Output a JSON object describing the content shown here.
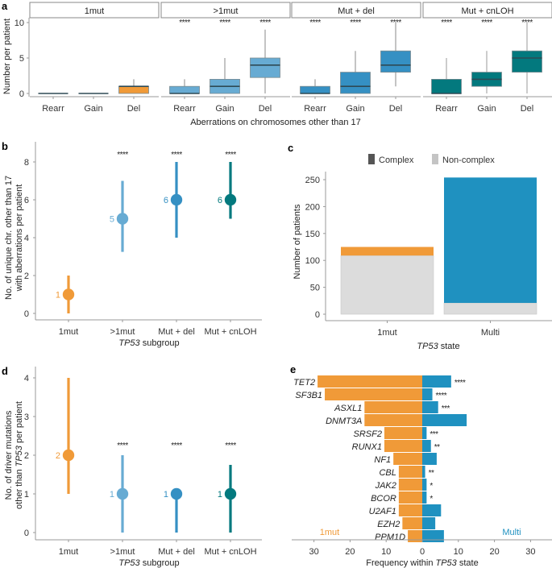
{
  "colors": {
    "1mut": "#F09A38",
    ">1mut": "#67ABD3",
    "Mut + del": "#3590C3",
    "Mut + cnLOH": "#03797E",
    "multi": "#1F91C0",
    "complex": "#555555",
    "noncomplex": "#DCDCDC",
    "median_line": "#2E4A55",
    "whisker": "#8A8A8A"
  },
  "chart_data": [
    {
      "panel": "a",
      "type": "box",
      "ylabel": "Number per patient",
      "xlabel": "Aberrations on chromosomes other than 17",
      "ylim": [
        0,
        10.5
      ],
      "yticks": [
        0,
        5,
        10
      ],
      "facets": [
        {
          "name": "1mut",
          "color_key": "1mut",
          "groups": [
            {
              "label": "Rearr",
              "min": 0,
              "q1": 0,
              "median": 0,
              "q3": 0,
              "max": 0,
              "sig": ""
            },
            {
              "label": "Gain",
              "min": 0,
              "q1": 0,
              "median": 0,
              "q3": 0,
              "max": 0,
              "sig": ""
            },
            {
              "label": "Del",
              "min": 0,
              "q1": 0,
              "median": 1,
              "q3": 1,
              "max": 2,
              "sig": ""
            }
          ]
        },
        {
          "name": ">1mut",
          "color_key": ">1mut",
          "groups": [
            {
              "label": "Rearr",
              "min": 0,
              "q1": 0,
              "median": 0,
              "q3": 1,
              "max": 2,
              "sig": "****"
            },
            {
              "label": "Gain",
              "min": 0,
              "q1": 0,
              "median": 1,
              "q3": 2,
              "max": 5,
              "sig": "****"
            },
            {
              "label": "Del",
              "min": 0,
              "q1": 2.25,
              "median": 4,
              "q3": 5,
              "max": 9,
              "sig": "****"
            }
          ]
        },
        {
          "name": "Mut + del",
          "color_key": "Mut + del",
          "groups": [
            {
              "label": "Rearr",
              "min": 0,
              "q1": 0,
              "median": 0,
              "q3": 1,
              "max": 2,
              "sig": "****"
            },
            {
              "label": "Gain",
              "min": 0,
              "q1": 0,
              "median": 1,
              "q3": 3,
              "max": 6,
              "sig": "****"
            },
            {
              "label": "Del",
              "min": 1,
              "q1": 3,
              "median": 4,
              "q3": 6,
              "max": 10,
              "sig": "****"
            }
          ]
        },
        {
          "name": "Mut + cnLOH",
          "color_key": "Mut + cnLOH",
          "groups": [
            {
              "label": "Rearr",
              "min": 0,
              "q1": 0,
              "median": 0,
              "q3": 2,
              "max": 5,
              "sig": "****"
            },
            {
              "label": "Gain",
              "min": 0,
              "q1": 1,
              "median": 2,
              "q3": 3,
              "max": 6,
              "sig": "****"
            },
            {
              "label": "Del",
              "min": 0,
              "q1": 3,
              "median": 5,
              "q3": 6,
              "max": 10,
              "sig": "****"
            }
          ]
        }
      ]
    },
    {
      "panel": "b",
      "type": "pointrange",
      "ylabel_lines": [
        "No. of unique chr. other than 17",
        "with aberrations per patient"
      ],
      "xlabel_italic": "TP53",
      "xlabel_rest": " subgroup",
      "ylim": [
        0,
        8.5
      ],
      "yticks": [
        0,
        2,
        4,
        6,
        8
      ],
      "categories": [
        "1mut",
        ">1mut",
        "Mut + del",
        "Mut + cnLOH"
      ],
      "points": [
        {
          "median": 1,
          "low": 0,
          "high": 2,
          "label": "1",
          "sig": ""
        },
        {
          "median": 5,
          "low": 3.25,
          "high": 7,
          "label": "5",
          "sig": "****"
        },
        {
          "median": 6,
          "low": 4,
          "high": 8,
          "label": "6",
          "sig": "****"
        },
        {
          "median": 6,
          "low": 5,
          "high": 8,
          "label": "6",
          "sig": "****"
        }
      ]
    },
    {
      "panel": "c",
      "type": "stacked-bar",
      "ylabel": "Number of patients",
      "xlabel_italic": "TP53",
      "xlabel_rest": " state",
      "ylim": [
        0,
        265
      ],
      "yticks": [
        0,
        50,
        100,
        150,
        200,
        250
      ],
      "legend": [
        {
          "label": "Complex",
          "key": "complex"
        },
        {
          "label": "Non-complex",
          "key": "noncomplex"
        }
      ],
      "legend_position": "top",
      "categories": [
        "1mut",
        "Multi"
      ],
      "series": [
        {
          "name": "Non-complex",
          "values": [
            109,
            21
          ]
        },
        {
          "name": "Complex",
          "values": [
            16,
            233
          ]
        }
      ]
    },
    {
      "panel": "d",
      "type": "pointrange",
      "ylabel_lines": [
        "No. of driver mutations",
        "other than TP53 per patient"
      ],
      "xlabel_italic": "TP53",
      "xlabel_rest": " subgroup",
      "ylim": [
        0,
        4.2
      ],
      "yticks": [
        0,
        1,
        2,
        3,
        4
      ],
      "categories": [
        "1mut",
        ">1mut",
        "Mut + del",
        "Mut + cnLOH"
      ],
      "points": [
        {
          "median": 2,
          "low": 1,
          "high": 4,
          "label": "2",
          "sig": ""
        },
        {
          "median": 1,
          "low": 0,
          "high": 2,
          "label": "1",
          "sig": "****"
        },
        {
          "median": 1,
          "low": 0,
          "high": 1,
          "label": "1",
          "sig": "****"
        },
        {
          "median": 1,
          "low": 0,
          "high": 1.75,
          "label": "1",
          "sig": "****"
        }
      ]
    },
    {
      "panel": "e",
      "type": "bar",
      "orientation": "horizontal-diverging",
      "xlabel_pre": "Frequency within ",
      "xlabel_italic": "TP53",
      "xlabel_rest": " state",
      "xlim": [
        -35,
        35
      ],
      "xticks": [
        -30,
        -20,
        -10,
        0,
        10,
        20,
        30
      ],
      "xtick_labels": [
        "30",
        "20",
        "10",
        "0",
        "10",
        "20",
        "30"
      ],
      "left_label": "1mut",
      "right_label": "Multi",
      "genes": [
        "TET2",
        "SF3B1",
        "ASXL1",
        "DNMT3A",
        "SRSF2",
        "RUNX1",
        "NF1",
        "CBL",
        "JAK2",
        "BCOR",
        "U2AF1",
        "EZH2",
        "PPM1D"
      ],
      "series": [
        {
          "name": "1mut",
          "values": [
            29,
            27,
            16,
            16,
            10.5,
            10.5,
            8,
            6.5,
            6.5,
            6.5,
            6.5,
            5.5,
            4
          ]
        },
        {
          "name": "Multi",
          "values": [
            8,
            2.8,
            4.4,
            12.3,
            1.2,
            2.4,
            4,
            0.8,
            1.2,
            1.2,
            5.2,
            3.6,
            6
          ]
        }
      ],
      "sig": [
        "****",
        "****",
        "***",
        "",
        "***",
        "**",
        "",
        "**",
        "*",
        "*",
        "",
        "",
        ""
      ]
    }
  ]
}
